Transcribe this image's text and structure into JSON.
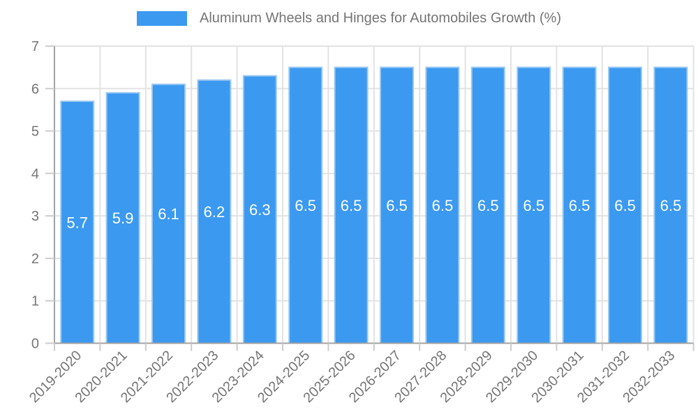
{
  "legend": {
    "label": "Aluminum Wheels and Hinges for Automobiles Growth (%)"
  },
  "colors": {
    "background": "#FFFFFF",
    "bar_fill": "#3B99F0",
    "bar_edge": "#9CC9F1",
    "grid_line": "#E2E2E2",
    "axis_line": "#A3A3A3",
    "tick_mark": "#CCCCCC",
    "tick_text": "#757575",
    "value_label_text": "#FFFFFF",
    "legend_text": "#757575"
  },
  "chart_data": {
    "type": "bar",
    "title": "Aluminum Wheels and Hinges for Automobiles Growth (%)",
    "categories": [
      "2019-2020",
      "2020-2021",
      "2021-2022",
      "2022-2023",
      "2023-2024",
      "2024-2025",
      "2025-2026",
      "2026-2027",
      "2027-2028",
      "2028-2029",
      "2029-2030",
      "2030-2031",
      "2031-2032",
      "2032-2033"
    ],
    "values": [
      5.7,
      5.9,
      6.1,
      6.2,
      6.3,
      6.5,
      6.5,
      6.5,
      6.5,
      6.5,
      6.5,
      6.5,
      6.5,
      6.5
    ],
    "value_label_format": "one-decimal",
    "value_labels_position": "inside-middle",
    "xlabel": "",
    "ylabel": "",
    "ylim": [
      0,
      7
    ],
    "yticks": [
      0,
      1,
      2,
      3,
      4,
      5,
      6,
      7
    ],
    "grid": true,
    "legend_position": "top-center",
    "x_label_rotation_deg": -45
  }
}
